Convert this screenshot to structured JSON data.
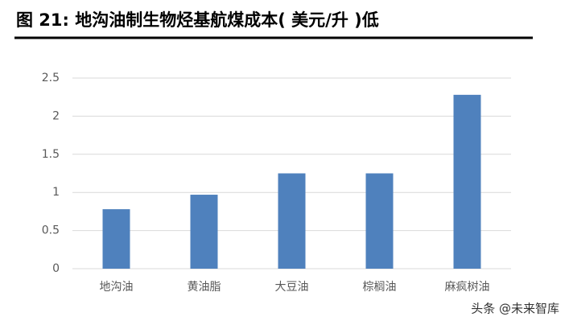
{
  "chart_data": {
    "type": "bar",
    "title": "图 21: 地沟油制生物烃基航煤成本( 美元/升 )低",
    "categories": [
      "地沟油",
      "黄油脂",
      "大豆油",
      "棕榈油",
      "麻疯树油"
    ],
    "values": [
      0.78,
      0.97,
      1.25,
      1.25,
      2.28
    ],
    "color": "#4f81bd",
    "ylim": [
      0,
      2.5
    ],
    "yticks": [
      0,
      0.5,
      1,
      1.5,
      2,
      2.5
    ],
    "grid": true
  },
  "watermark": "头条 @未来智库"
}
